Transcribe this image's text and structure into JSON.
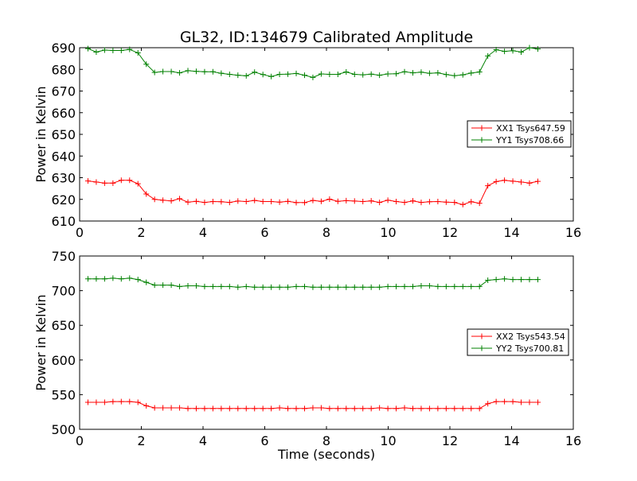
{
  "figure_title": "GL32, ID:134679 Calibrated Amplitude",
  "chart_data": [
    {
      "type": "line",
      "title": "GL32, ID:134679 Calibrated Amplitude",
      "xlabel": "",
      "ylabel": "Power in Kelvin",
      "xlim": [
        0,
        16
      ],
      "ylim": [
        610,
        690
      ],
      "xticks": [
        "0",
        "2",
        "4",
        "6",
        "8",
        "10",
        "12",
        "14",
        "16"
      ],
      "yticks": [
        "610",
        "620",
        "630",
        "640",
        "650",
        "660",
        "670",
        "680",
        "690"
      ],
      "grid": false,
      "legend_position": "right",
      "x": [
        0.27,
        0.54,
        0.81,
        1.08,
        1.35,
        1.62,
        1.89,
        2.16,
        2.43,
        2.7,
        2.97,
        3.24,
        3.51,
        3.78,
        4.05,
        4.32,
        4.59,
        4.86,
        5.13,
        5.4,
        5.67,
        5.94,
        6.21,
        6.48,
        6.75,
        7.02,
        7.29,
        7.56,
        7.83,
        8.1,
        8.37,
        8.64,
        8.91,
        9.18,
        9.45,
        9.72,
        9.99,
        10.26,
        10.53,
        10.8,
        11.07,
        11.34,
        11.61,
        11.88,
        12.15,
        12.42,
        12.69,
        12.96,
        13.23,
        13.5,
        13.77,
        14.04,
        14.31,
        14.58,
        14.85
      ],
      "series": [
        {
          "name": "XX1 Tsys647.59",
          "color": "#ff0000",
          "values": [
            628.5,
            628.0,
            627.5,
            627.5,
            628.8,
            628.8,
            627.2,
            622.5,
            620.0,
            619.6,
            619.3,
            620.3,
            618.7,
            619.1,
            618.6,
            619.0,
            618.9,
            618.6,
            619.2,
            619.0,
            619.5,
            619.0,
            619.0,
            618.7,
            619.1,
            618.5,
            618.5,
            619.5,
            619.1,
            620.1,
            619.1,
            619.4,
            619.2,
            619.0,
            619.3,
            618.6,
            619.6,
            619.0,
            618.6,
            619.3,
            618.6,
            618.9,
            619.0,
            618.7,
            618.6,
            617.6,
            618.9,
            618.2,
            626.3,
            628.2,
            628.8,
            628.4,
            628.0,
            627.5,
            628.3
          ]
        },
        {
          "name": "YY1 Tsys708.66",
          "color": "#008000",
          "values": [
            689.6,
            688.0,
            688.9,
            688.7,
            688.7,
            689.2,
            687.6,
            682.4,
            678.6,
            679.0,
            679.0,
            678.4,
            679.4,
            679.1,
            678.9,
            678.9,
            678.2,
            677.7,
            677.3,
            677.0,
            678.7,
            677.6,
            676.7,
            677.7,
            677.8,
            678.1,
            677.3,
            676.3,
            677.9,
            677.7,
            677.7,
            678.8,
            677.7,
            677.5,
            677.8,
            677.3,
            677.9,
            678.0,
            678.9,
            678.4,
            678.7,
            678.2,
            678.4,
            677.6,
            677.1,
            677.5,
            678.3,
            678.8,
            686.2,
            689.1,
            688.3,
            688.6,
            688.0,
            690.0,
            689.4
          ]
        }
      ]
    },
    {
      "type": "line",
      "title": "",
      "xlabel": "Time (seconds)",
      "ylabel": "Power in Kelvin",
      "xlim": [
        0,
        16
      ],
      "ylim": [
        500,
        750
      ],
      "xticks": [
        "0",
        "2",
        "4",
        "6",
        "8",
        "10",
        "12",
        "14",
        "16"
      ],
      "yticks": [
        "500",
        "550",
        "600",
        "650",
        "700",
        "750"
      ],
      "grid": false,
      "legend_position": "right",
      "x": [
        0.27,
        0.54,
        0.81,
        1.08,
        1.35,
        1.62,
        1.89,
        2.16,
        2.43,
        2.7,
        2.97,
        3.24,
        3.51,
        3.78,
        4.05,
        4.32,
        4.59,
        4.86,
        5.13,
        5.4,
        5.67,
        5.94,
        6.21,
        6.48,
        6.75,
        7.02,
        7.29,
        7.56,
        7.83,
        8.1,
        8.37,
        8.64,
        8.91,
        9.18,
        9.45,
        9.72,
        9.99,
        10.26,
        10.53,
        10.8,
        11.07,
        11.34,
        11.61,
        11.88,
        12.15,
        12.42,
        12.69,
        12.96,
        13.23,
        13.5,
        13.77,
        14.04,
        14.31,
        14.58,
        14.85
      ],
      "series": [
        {
          "name": "XX2 Tsys543.54",
          "color": "#ff0000",
          "values": [
            539,
            539,
            539,
            540,
            540,
            540,
            539,
            534,
            531,
            531,
            531,
            531,
            530,
            530,
            530,
            530,
            530,
            530,
            530,
            530,
            530,
            530,
            530,
            531,
            530,
            530,
            530,
            531,
            531,
            530,
            530,
            530,
            530,
            530,
            530,
            531,
            530,
            530,
            531,
            530,
            530,
            530,
            530,
            530,
            530,
            530,
            530,
            530,
            537,
            540,
            540,
            540,
            539,
            539,
            539
          ]
        },
        {
          "name": "YY2 Tsys700.81",
          "color": "#008000",
          "values": [
            717,
            717,
            717,
            718,
            717,
            718,
            716,
            712,
            708,
            708,
            708,
            706,
            707,
            707,
            706,
            706,
            706,
            706,
            705,
            706,
            705,
            705,
            705,
            705,
            705,
            706,
            706,
            705,
            705,
            705,
            705,
            705,
            705,
            705,
            705,
            705,
            706,
            706,
            706,
            706,
            707,
            707,
            706,
            706,
            706,
            706,
            706,
            706,
            715,
            716,
            717,
            716,
            716,
            716,
            716
          ]
        }
      ]
    }
  ]
}
